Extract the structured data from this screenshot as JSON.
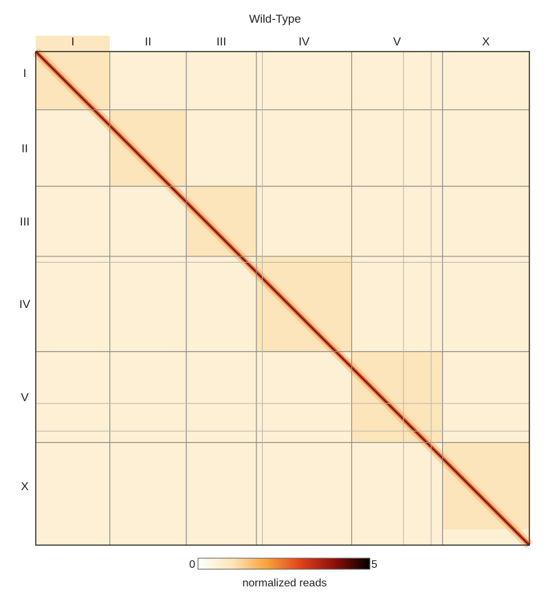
{
  "chart_data": {
    "type": "heatmap",
    "title": "Wild-Type",
    "xlabel": "",
    "ylabel": "",
    "categories": [
      "I",
      "II",
      "III",
      "IV",
      "V",
      "X"
    ],
    "secondary_boundaries": [
      0.459,
      0.745,
      0.801
    ],
    "colorbar": {
      "min": "0",
      "max": "5",
      "label": "normalized reads",
      "colors": [
        "#ffffff",
        "#fde6b7",
        "#f9a23a",
        "#e0401a",
        "#8a0f0a",
        "#000000"
      ]
    },
    "colors": {
      "background": "#fdf0d4",
      "diagonal": "#b81c10",
      "grid": "#8c8a86"
    }
  }
}
